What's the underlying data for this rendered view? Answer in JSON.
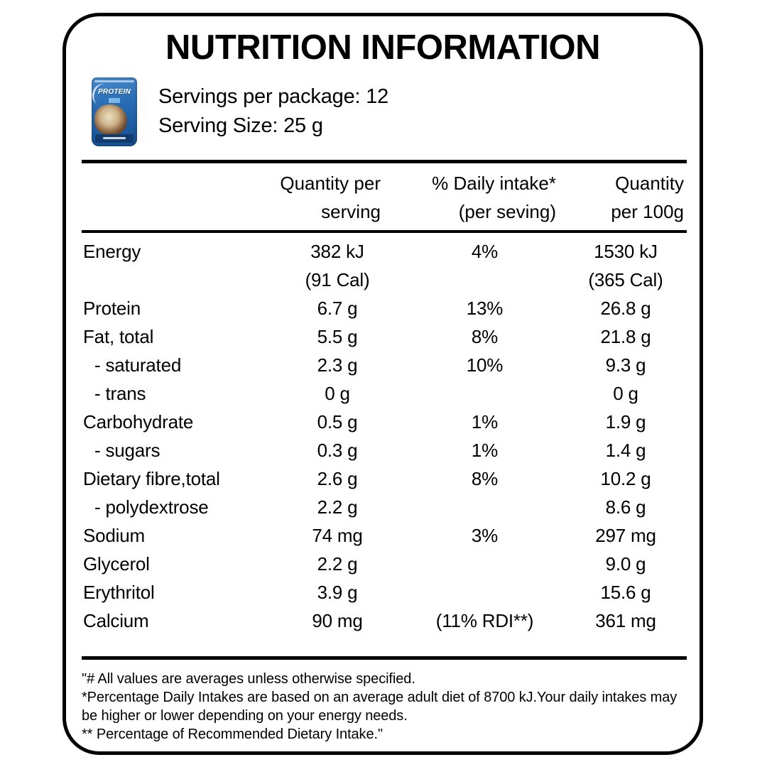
{
  "title": "NUTRITION INFORMATION",
  "intro": {
    "servings_per_package": "Servings per package: 12",
    "serving_size": "Serving Size: 25 g"
  },
  "product": {
    "brand_text": "PROTEIN",
    "pouch_color": "#2b6fb7"
  },
  "table": {
    "headers": {
      "quantity_per_serving": {
        "line1": "Quantity per",
        "line2": "serving"
      },
      "daily_intake": {
        "line1": "% Daily  intake*",
        "line2": "(per seving)"
      },
      "quantity_per_100g": {
        "line1": "Quantity",
        "line2": "per 100g"
      }
    },
    "rows": [
      {
        "label": "Energy",
        "serving": "382 kJ",
        "serving2": "(91 Cal)",
        "daily": "4%",
        "per100": "1530 kJ",
        "per100_2": "(365 Cal)"
      },
      {
        "label": "Protein",
        "serving": "6.7 g",
        "daily": "13%",
        "per100": "26.8 g"
      },
      {
        "label": "Fat, total",
        "serving": "5.5 g",
        "daily": "8%",
        "per100": "21.8 g"
      },
      {
        "label": "- saturated",
        "indent": true,
        "serving": "2.3 g",
        "daily": "10%",
        "per100": "9.3 g"
      },
      {
        "label": "- trans",
        "indent": true,
        "serving": "0 g",
        "daily": "",
        "per100": "0 g"
      },
      {
        "label": "Carbohydrate",
        "serving": "0.5 g",
        "daily": "1%",
        "per100": "1.9 g"
      },
      {
        "label": "- sugars",
        "indent": true,
        "serving": "0.3 g",
        "daily": "1%",
        "per100": "1.4 g"
      },
      {
        "label": "Dietary fibre,total",
        "serving": "2.6 g",
        "daily": "8%",
        "per100": "10.2 g"
      },
      {
        "label": "- polydextrose",
        "indent": true,
        "serving": "2.2 g",
        "daily": "",
        "per100": "8.6 g"
      },
      {
        "label": "Sodium",
        "serving": "74 mg",
        "daily": "3%",
        "per100": "297 mg"
      },
      {
        "label": "Glycerol",
        "serving": "2.2 g",
        "daily": "",
        "per100": "9.0 g"
      },
      {
        "label": "Erythritol",
        "serving": "3.9 g",
        "daily": "",
        "per100": "15.6 g"
      },
      {
        "label": "Calcium",
        "serving": "90 mg",
        "daily": "(11% RDI**)",
        "per100": "361 mg"
      }
    ]
  },
  "footnotes": [
    "\"# All values are averages unless otherwise specified.",
    "*Percentage Daily Intakes are based on an average adult diet of 8700 kJ.Your daily intakes may be higher or lower depending on your energy needs.",
    "** Percentage of Recommended Dietary Intake.\""
  ]
}
